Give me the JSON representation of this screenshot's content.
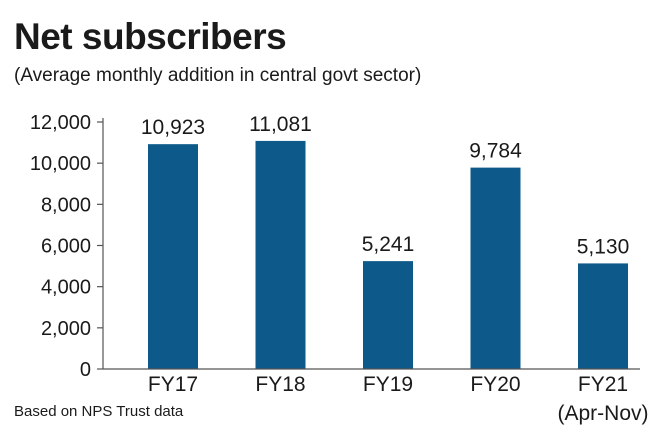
{
  "chart_data": {
    "type": "bar",
    "title": "Net subscribers",
    "subtitle": "(Average monthly addition in central govt sector)",
    "categories": [
      "FY17",
      "FY18",
      "FY19",
      "FY20",
      "FY21"
    ],
    "category_sublabels": [
      "",
      "",
      "",
      "",
      "(Apr-Nov)"
    ],
    "values": [
      10923,
      11081,
      5241,
      9784,
      5130
    ],
    "value_labels": [
      "10,923",
      "11,081",
      "5,241",
      "9,784",
      "5,130"
    ],
    "yticks": [
      0,
      2000,
      4000,
      6000,
      8000,
      10000,
      12000
    ],
    "ytick_labels": [
      "0",
      "2,000",
      "4,000",
      "6,000",
      "8,000",
      "10,000",
      "12,000"
    ],
    "ylim": [
      0,
      12000
    ],
    "xlabel": "",
    "ylabel": "",
    "grid": false,
    "bar_color": "#0d5a8a",
    "source": "Based on NPS Trust data"
  }
}
